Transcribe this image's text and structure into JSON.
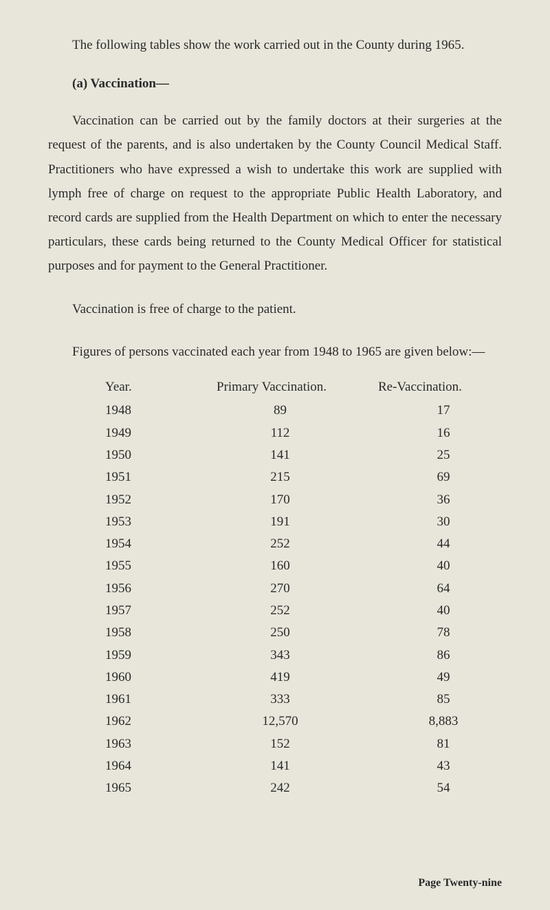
{
  "intro": "The following tables show the work carried out in the County during 1965.",
  "section_header": "(a) Vaccination—",
  "body_paragraph": "Vaccination can be carried out by the family doctors at their surgeries at the request of the parents, and is also undertaken by the County Council Medical Staff. Practitioners who have expressed a wish to undertake this work are supplied with lymph free of charge on request to the appropriate Public Health Laboratory, and record cards are supplied from the Health Department on which to enter the necessary particulars, these cards being returned to the County Medical Officer for statistical purposes and for payment to the General Practitioner.",
  "short_paragraph": "Vaccination is free of charge to the patient.",
  "figures_paragraph": "Figures of persons vaccinated each year from 1948 to 1965 are given below:—",
  "table": {
    "headers": {
      "year": "Year.",
      "primary": "Primary Vaccination.",
      "revac": "Re-Vaccination."
    },
    "rows": [
      {
        "year": "1948",
        "primary": "89",
        "revac": "17"
      },
      {
        "year": "1949",
        "primary": "112",
        "revac": "16"
      },
      {
        "year": "1950",
        "primary": "141",
        "revac": "25"
      },
      {
        "year": "1951",
        "primary": "215",
        "revac": "69"
      },
      {
        "year": "1952",
        "primary": "170",
        "revac": "36"
      },
      {
        "year": "1953",
        "primary": "191",
        "revac": "30"
      },
      {
        "year": "1954",
        "primary": "252",
        "revac": "44"
      },
      {
        "year": "1955",
        "primary": "160",
        "revac": "40"
      },
      {
        "year": "1956",
        "primary": "270",
        "revac": "64"
      },
      {
        "year": "1957",
        "primary": "252",
        "revac": "40"
      },
      {
        "year": "1958",
        "primary": "250",
        "revac": "78"
      },
      {
        "year": "1959",
        "primary": "343",
        "revac": "86"
      },
      {
        "year": "1960",
        "primary": "419",
        "revac": "49"
      },
      {
        "year": "1961",
        "primary": "333",
        "revac": "85"
      },
      {
        "year": "1962",
        "primary": "12,570",
        "revac": "8,883"
      },
      {
        "year": "1963",
        "primary": "152",
        "revac": "81"
      },
      {
        "year": "1964",
        "primary": "141",
        "revac": "43"
      },
      {
        "year": "1965",
        "primary": "242",
        "revac": "54"
      }
    ]
  },
  "footer": "Page Twenty-nine"
}
